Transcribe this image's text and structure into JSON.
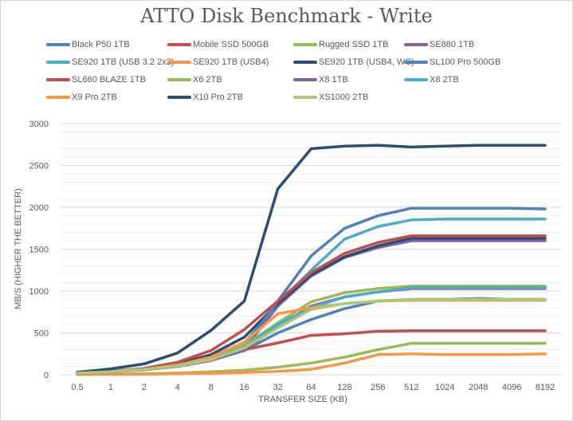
{
  "chart_data": {
    "type": "line",
    "title": "ATTO Disk Benchmark - Write",
    "xlabel": "TRANSFER SIZE (KB)",
    "ylabel": "MB/S (HIGHER THE BETTER)",
    "ylim": [
      0,
      3000
    ],
    "y_ticks": [
      "0",
      "500",
      "1000",
      "1500",
      "2000",
      "2500",
      "3000"
    ],
    "y_tick_values": [
      0,
      500,
      1000,
      1500,
      2000,
      2500,
      3000
    ],
    "grid": true,
    "legend_position": "top",
    "categories": [
      "0.5",
      "1",
      "2",
      "4",
      "8",
      "16",
      "32",
      "64",
      "128",
      "256",
      "512",
      "1024",
      "2048",
      "4096",
      "8192"
    ],
    "series": [
      {
        "name": "Black P50 1TB",
        "color": "#4f81bd",
        "values": [
          20,
          35,
          60,
          100,
          170,
          290,
          500,
          660,
          790,
          880,
          900,
          900,
          910,
          900,
          900
        ]
      },
      {
        "name": "Mobile SSD 500GB",
        "color": "#c0504d",
        "values": [
          20,
          40,
          70,
          120,
          200,
          300,
          380,
          470,
          490,
          520,
          525,
          525,
          525,
          525,
          525
        ]
      },
      {
        "name": "Rugged SSD 1TB",
        "color": "#9bbb59",
        "values": [
          5,
          8,
          12,
          20,
          35,
          55,
          90,
          140,
          210,
          300,
          375,
          375,
          375,
          375,
          375
        ]
      },
      {
        "name": "SE880 1TB",
        "color": "#8064a2",
        "values": [
          20,
          38,
          65,
          110,
          190,
          310,
          820,
          1180,
          1400,
          1520,
          1600,
          1600,
          1600,
          1600,
          1600
        ]
      },
      {
        "name": "SE920 1TB (USB 3.2 2x2)",
        "color": "#4bacc6",
        "values": [
          20,
          38,
          65,
          115,
          210,
          380,
          850,
          1250,
          1620,
          1770,
          1850,
          1860,
          1860,
          1860,
          1860
        ]
      },
      {
        "name": "SE920 1TB (USB4)",
        "color": "#f79646",
        "values": [
          3,
          5,
          8,
          12,
          18,
          28,
          40,
          65,
          140,
          240,
          250,
          240,
          240,
          240,
          250
        ]
      },
      {
        "name": "SE920 1TB (USB4, WC)",
        "color": "#2c4d75",
        "values": [
          20,
          40,
          70,
          130,
          240,
          450,
          850,
          1190,
          1410,
          1540,
          1630,
          1630,
          1630,
          1630,
          1630
        ]
      },
      {
        "name": "SL100 Pro 500GB",
        "color": "#4f81bd",
        "values": [
          20,
          35,
          60,
          110,
          200,
          340,
          880,
          1420,
          1750,
          1900,
          1990,
          1990,
          1990,
          1990,
          1980
        ]
      },
      {
        "name": "SL660 BLAZE 1TB",
        "color": "#c0504d",
        "values": [
          22,
          42,
          75,
          150,
          290,
          540,
          880,
          1220,
          1450,
          1580,
          1660,
          1660,
          1660,
          1660,
          1660
        ]
      },
      {
        "name": "X6 2TB",
        "color": "#9bbb59",
        "values": [
          20,
          36,
          62,
          110,
          195,
          350,
          620,
          870,
          980,
          1030,
          1060,
          1060,
          1060,
          1060,
          1060
        ]
      },
      {
        "name": "X8 1TB",
        "color": "#8064a2",
        "values": [
          18,
          34,
          58,
          100,
          170,
          300,
          580,
          820,
          930,
          990,
          1030,
          1030,
          1030,
          1030,
          1030
        ]
      },
      {
        "name": "X8 2TB",
        "color": "#4bacc6",
        "values": [
          20,
          36,
          62,
          105,
          185,
          330,
          600,
          800,
          930,
          990,
          1040,
          1040,
          1040,
          1040,
          1040
        ]
      },
      {
        "name": "X9 Pro 2TB",
        "color": "#f79646",
        "values": [
          20,
          38,
          66,
          115,
          210,
          390,
          730,
          800,
          850,
          880,
          890,
          890,
          890,
          890,
          890
        ]
      },
      {
        "name": "X10 Pro 2TB",
        "color": "#2c4d75",
        "values": [
          30,
          70,
          130,
          260,
          530,
          880,
          2220,
          2700,
          2730,
          2740,
          2720,
          2730,
          2740,
          2740,
          2740
        ]
      },
      {
        "name": "XS1000 2TB",
        "color": "#a9c97a",
        "values": [
          20,
          36,
          62,
          105,
          180,
          320,
          560,
          780,
          850,
          880,
          900,
          900,
          900,
          900,
          900
        ]
      }
    ]
  }
}
